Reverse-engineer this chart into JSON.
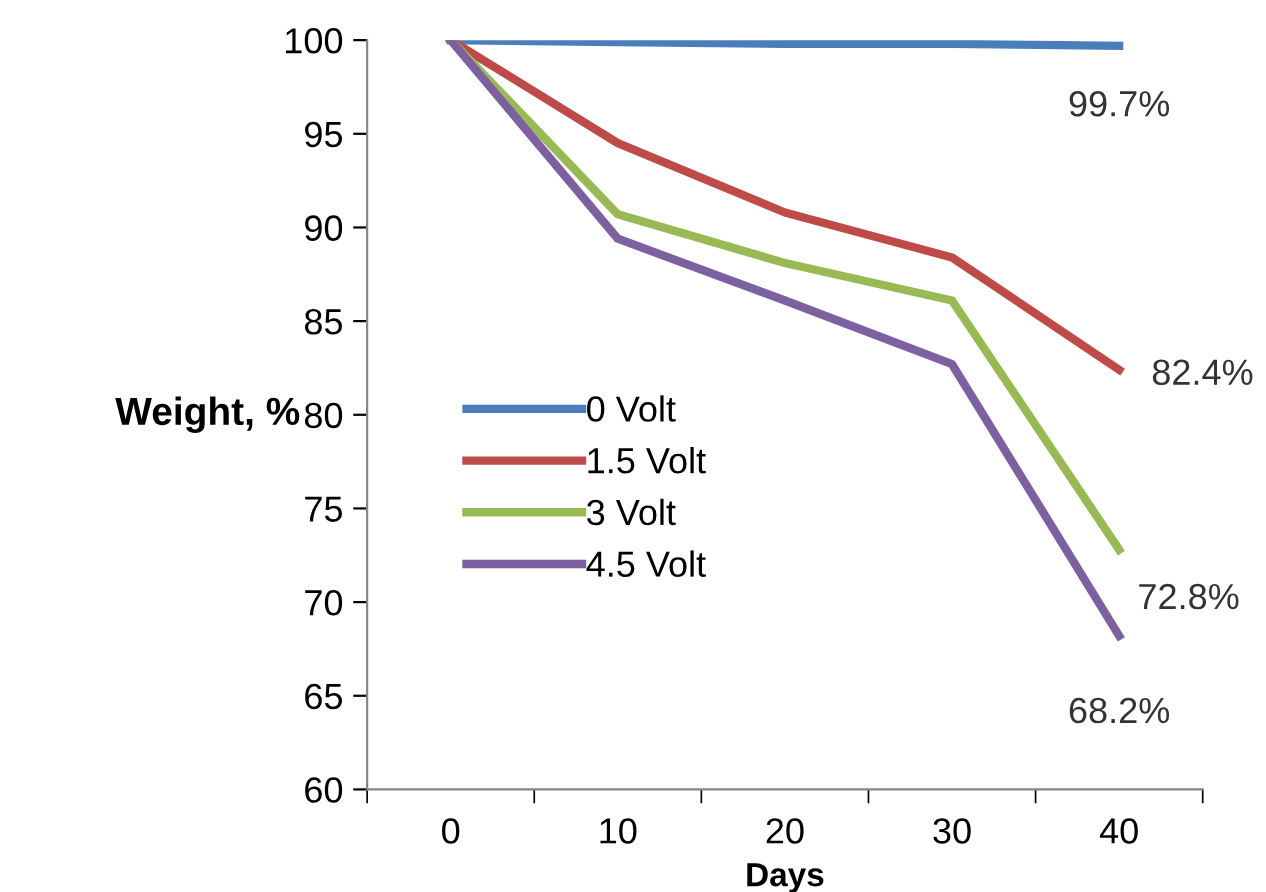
{
  "chart_data": {
    "type": "line",
    "xlabel": "Days",
    "ylabel": "Weight, %",
    "categories": [
      "0",
      "10",
      "20",
      "30",
      "40"
    ],
    "series": [
      {
        "name": "0 Volt",
        "color": "#4a7ebb",
        "values": [
          100,
          99.9,
          99.8,
          99.8,
          99.7
        ]
      },
      {
        "name": "1.5 Volt",
        "color": "#be4b48",
        "values": [
          100,
          94.5,
          90.8,
          88.4,
          82.4
        ]
      },
      {
        "name": "3 Volt",
        "color": "#98b954",
        "values": [
          100,
          90.7,
          88.1,
          86.1,
          72.8
        ]
      },
      {
        "name": "4.5 Volt",
        "color": "#7d60a0",
        "values": [
          100,
          89.4,
          86.1,
          82.7,
          68.2
        ]
      }
    ],
    "ylim": [
      60,
      100
    ],
    "yticks": [
      60,
      65,
      70,
      75,
      80,
      85,
      90,
      95,
      100
    ],
    "grid": false,
    "legend": "left",
    "marker": "none",
    "line_style": "solid",
    "annotations": [
      {
        "text": "99.7%",
        "x": "40",
        "y": 99.7
      },
      {
        "text": "82.4%",
        "x": "40",
        "y": 82.4
      },
      {
        "text": "72.8%",
        "x": "40",
        "y": 72.8
      },
      {
        "text": "68.2%",
        "x": "40",
        "y": 68.2
      }
    ]
  }
}
